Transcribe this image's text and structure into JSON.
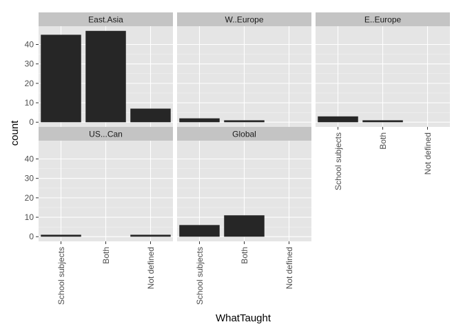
{
  "chart_data": {
    "type": "bar",
    "title": "",
    "xlabel": "WhatTaught",
    "ylabel": "count",
    "categories": [
      "School subjects",
      "Both",
      "Not defined"
    ],
    "y_ticks": [
      0,
      10,
      20,
      30,
      40
    ],
    "ylim": [
      -2.4,
      49.4
    ],
    "grid": true,
    "colors": {
      "panel_bg": "#e5e5e5",
      "strip_bg": "#c4c4c4",
      "grid_major": "#ffffff",
      "grid_minor": "#f2f2f2",
      "bar": "#262626"
    },
    "panels": [
      {
        "name": "East.Asia",
        "values": [
          45,
          47,
          7
        ]
      },
      {
        "name": "W..Europe",
        "values": [
          2,
          1,
          0
        ]
      },
      {
        "name": "E..Europe",
        "values": [
          3,
          1,
          0
        ]
      },
      {
        "name": "US...Can",
        "values": [
          1,
          0,
          1
        ]
      },
      {
        "name": "Global",
        "values": [
          6,
          11,
          0
        ]
      }
    ]
  }
}
